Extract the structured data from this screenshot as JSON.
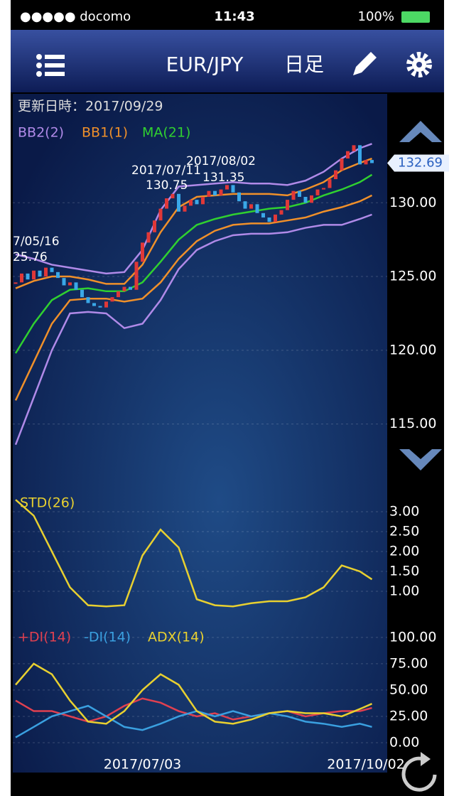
{
  "status_bar": {
    "carrier": "●●●●● docomo",
    "time": "11:43",
    "battery": "100%"
  },
  "nav": {
    "symbol": "EUR/JPY",
    "period": "日足"
  },
  "updated": "更新日時：2017/09/29",
  "chart_data": [
    {
      "type": "candlestick",
      "categories": [
        null,
        null,
        null,
        null,
        null,
        null,
        null,
        null,
        null,
        null,
        null,
        null,
        null,
        null,
        null,
        null,
        null,
        null,
        null,
        null,
        null,
        "2017/07/03",
        null,
        null,
        null,
        null,
        null,
        null,
        null,
        null,
        null,
        null,
        null,
        null,
        null,
        null,
        null,
        null,
        null,
        null,
        null,
        null,
        null,
        null,
        null,
        null,
        null,
        null,
        null,
        null,
        null,
        null,
        null,
        null,
        null,
        null,
        null,
        null,
        "2017/10/02",
        null
      ],
      "closes": [
        124.6,
        125.2,
        124.8,
        125.4,
        125.0,
        125.6,
        125.3,
        124.9,
        124.4,
        124.6,
        124.1,
        123.6,
        123.2,
        123.0,
        122.9,
        123.3,
        123.6,
        124.0,
        124.3,
        124.1,
        126.0,
        127.3,
        128.0,
        128.8,
        129.6,
        130.3,
        130.6,
        129.4,
        129.8,
        130.2,
        129.9,
        130.4,
        130.8,
        130.5,
        130.9,
        131.2,
        130.7,
        130.1,
        129.6,
        129.9,
        129.3,
        129.0,
        128.7,
        129.2,
        129.5,
        130.2,
        130.8,
        130.4,
        130.0,
        130.5,
        130.9,
        131.0,
        131.6,
        132.2,
        133.0,
        133.5,
        133.9,
        132.6,
        132.9,
        132.69
      ],
      "up_color": "#e03838",
      "down_color": "#3aa8e8",
      "x": [
        0,
        3,
        6,
        9,
        12,
        15,
        18,
        21,
        24,
        27,
        30,
        33,
        36,
        39,
        42,
        45,
        48,
        51,
        54,
        57,
        59
      ],
      "bands": [
        {
          "name": "BB2(2)",
          "color": "#b08ae8",
          "upper": [
            126.5,
            126.2,
            125.8,
            125.6,
            125.4,
            125.2,
            125.3,
            126.8,
            129.5,
            131.1,
            131.2,
            131.3,
            131.4,
            131.3,
            131.3,
            131.2,
            131.5,
            132.1,
            133.0,
            133.7,
            134.0
          ],
          "lower": [
            113.6,
            116.8,
            120.0,
            122.5,
            122.6,
            122.5,
            121.5,
            121.8,
            123.4,
            125.5,
            126.8,
            127.4,
            127.8,
            127.9,
            127.9,
            128.0,
            128.3,
            128.5,
            128.5,
            128.9,
            129.2
          ]
        },
        {
          "name": "BB1(1)",
          "color": "#f0902a",
          "upper": [
            124.2,
            124.7,
            125.0,
            125.0,
            124.8,
            124.5,
            124.5,
            125.8,
            128.0,
            129.7,
            130.4,
            130.5,
            130.6,
            130.6,
            130.6,
            130.5,
            130.9,
            131.4,
            132.2,
            132.7,
            133.0
          ],
          "lower": [
            116.6,
            119.2,
            121.8,
            123.4,
            123.5,
            123.5,
            123.3,
            123.5,
            124.6,
            126.2,
            127.4,
            128.1,
            128.5,
            128.6,
            128.6,
            128.8,
            129.0,
            129.4,
            129.7,
            130.1,
            130.5
          ]
        }
      ],
      "series": [
        {
          "name": "MA(21)",
          "color": "#30d030",
          "values": [
            119.8,
            121.8,
            123.4,
            124.1,
            124.2,
            124.0,
            124.0,
            124.6,
            126.0,
            127.5,
            128.5,
            128.9,
            129.2,
            129.4,
            129.6,
            129.7,
            130.0,
            130.5,
            130.9,
            131.4,
            131.9
          ]
        }
      ],
      "ylim": [
        110.5,
        137
      ],
      "yticks": [
        {
          "value": 115,
          "label": "115.00"
        },
        {
          "value": 120,
          "label": "120.00"
        },
        {
          "value": 125,
          "label": "125.00"
        },
        {
          "value": 130,
          "label": "130.00"
        }
      ],
      "last_price": 132.69,
      "annotations": [
        "2017/07/11",
        "130.75",
        "2017/08/02",
        "131.35",
        "7/05/16",
        "25.76"
      ],
      "grid": true
    },
    {
      "type": "line",
      "x": [
        0,
        3,
        6,
        9,
        12,
        15,
        18,
        21,
        24,
        27,
        30,
        33,
        36,
        39,
        42,
        45,
        48,
        51,
        54,
        57,
        59
      ],
      "series": [
        {
          "name": "STD(26)",
          "color": "#e8d030",
          "values": [
            3.3,
            2.9,
            2.0,
            1.1,
            0.65,
            0.62,
            0.65,
            1.9,
            2.55,
            2.1,
            0.8,
            0.65,
            0.62,
            0.7,
            0.75,
            0.75,
            0.85,
            1.1,
            1.65,
            1.5,
            1.3
          ]
        }
      ],
      "ylim": [
        0.5,
        3.5
      ],
      "yticks": [
        {
          "value": 1,
          "label": "1.00"
        },
        {
          "value": 1.5,
          "label": "1.50"
        },
        {
          "value": 2,
          "label": "2.00"
        },
        {
          "value": 2.5,
          "label": "2.50"
        },
        {
          "value": 3,
          "label": "3.00"
        }
      ],
      "grid": true
    },
    {
      "type": "line",
      "x": [
        0,
        3,
        6,
        9,
        12,
        15,
        18,
        21,
        24,
        27,
        30,
        33,
        36,
        39,
        42,
        45,
        48,
        51,
        54,
        57,
        59
      ],
      "series": [
        {
          "name": "+DI(14)",
          "color": "#e04050",
          "values": [
            40,
            30,
            30,
            25,
            20,
            25,
            35,
            42,
            38,
            30,
            25,
            28,
            22,
            25,
            28,
            30,
            25,
            28,
            30,
            30,
            33
          ]
        },
        {
          "name": "-DI(14)",
          "color": "#3aa0e0",
          "values": [
            5,
            15,
            25,
            30,
            35,
            25,
            15,
            12,
            18,
            25,
            30,
            25,
            30,
            25,
            28,
            25,
            20,
            18,
            15,
            18,
            15
          ]
        },
        {
          "name": "ADX(14)",
          "color": "#e8d030",
          "values": [
            55,
            75,
            65,
            40,
            20,
            18,
            30,
            50,
            65,
            55,
            30,
            20,
            18,
            22,
            28,
            30,
            28,
            28,
            25,
            32,
            37
          ]
        }
      ],
      "ylim": [
        0,
        110
      ],
      "yticks": [
        {
          "value": 0,
          "label": "0.00"
        },
        {
          "value": 25,
          "label": "25.00"
        },
        {
          "value": 50,
          "label": "50.00"
        },
        {
          "value": 75,
          "label": "75.00"
        },
        {
          "value": 100,
          "label": "100.00"
        }
      ],
      "grid": true
    }
  ]
}
